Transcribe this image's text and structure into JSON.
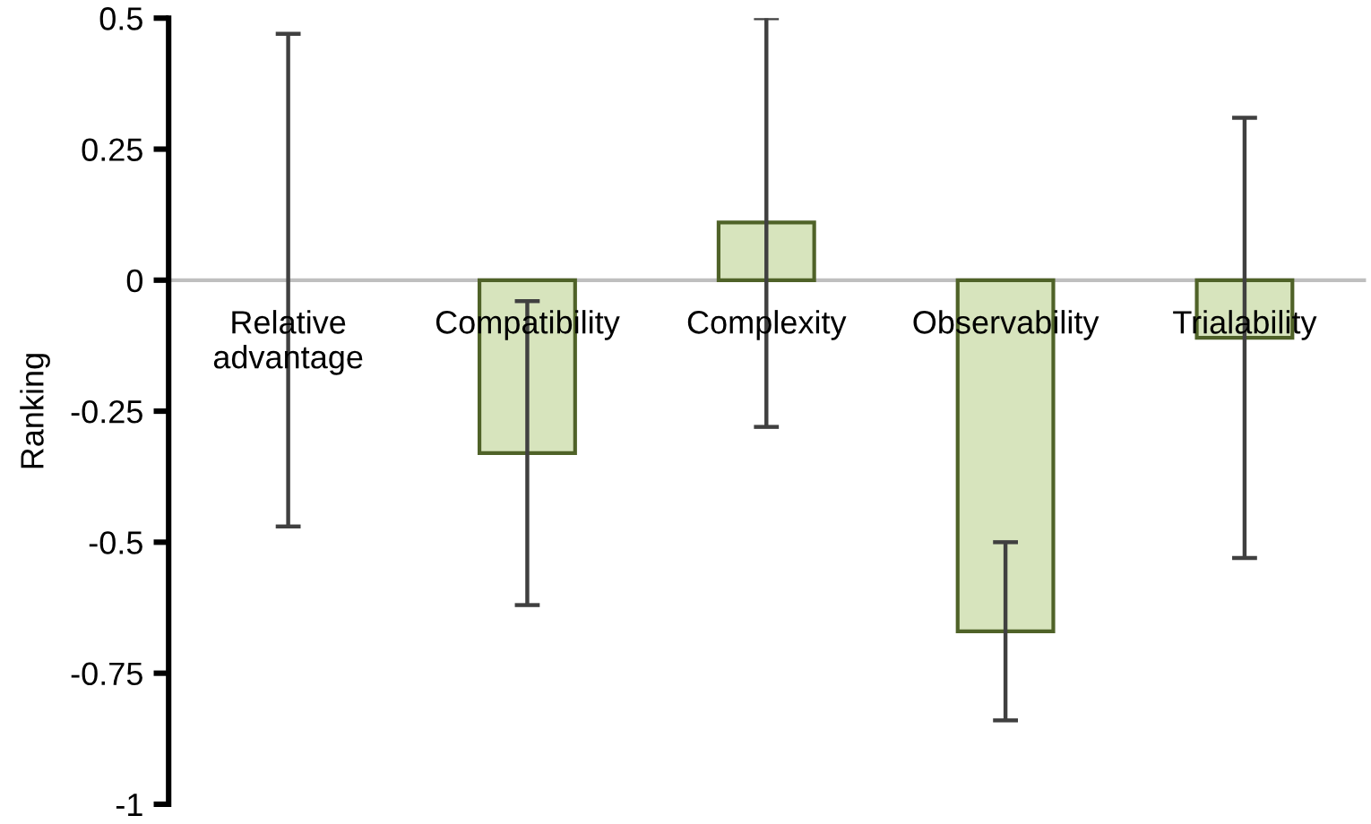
{
  "chart_data": {
    "type": "bar",
    "ylabel": "Ranking",
    "categories": [
      "Relative advantage",
      "Compatibility",
      "Complexity",
      "Observability",
      "Trialability"
    ],
    "values": [
      0,
      -0.33,
      0.11,
      -0.67,
      -0.11
    ],
    "errors": [
      0.47,
      0.29,
      0.39,
      0.17,
      0.42
    ],
    "color": "#d7e4bd",
    "ylim": [
      -1,
      0.5
    ],
    "yticks": [
      -1,
      -0.75,
      -0.5,
      -0.25,
      0,
      0.25,
      0.5
    ]
  }
}
